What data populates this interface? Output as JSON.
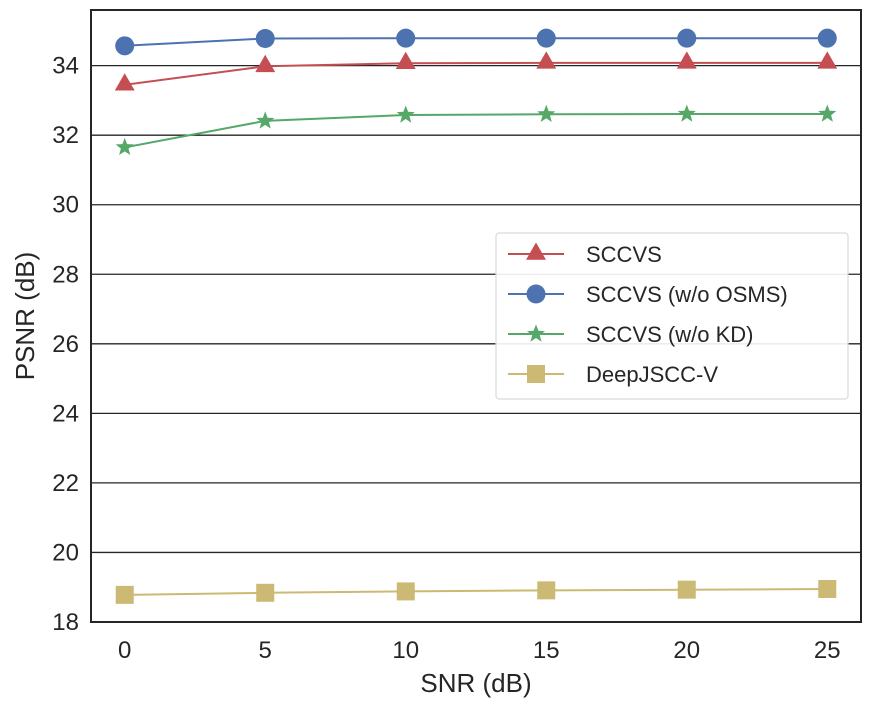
{
  "chart_data": {
    "type": "line",
    "title": "",
    "xlabel": "SNR (dB)",
    "ylabel": "PSNR (dB)",
    "x": [
      0,
      5,
      10,
      15,
      20,
      25
    ],
    "xticks": [
      "0",
      "5",
      "10",
      "15",
      "20",
      "25"
    ],
    "yticks": [
      "18",
      "20",
      "22",
      "24",
      "26",
      "28",
      "30",
      "32",
      "34"
    ],
    "xlim": [
      -1.2,
      26.2
    ],
    "ylim": [
      18,
      35.6
    ],
    "grid": "horizontal",
    "legend_position": "center-right",
    "series": [
      {
        "name": "SCCVS",
        "values": [
          33.45,
          33.98,
          34.07,
          34.08,
          34.08,
          34.08
        ],
        "color": "#c44e52",
        "marker": "triangle"
      },
      {
        "name": "SCCVS (w/o OSMS)",
        "values": [
          34.57,
          34.78,
          34.79,
          34.79,
          34.79,
          34.79
        ],
        "color": "#4c72b0",
        "marker": "circle"
      },
      {
        "name": "SCCVS (w/o KD)",
        "values": [
          31.65,
          32.41,
          32.58,
          32.6,
          32.61,
          32.61
        ],
        "color": "#55a868",
        "marker": "star"
      },
      {
        "name": "DeepJSCC-V",
        "values": [
          18.78,
          18.84,
          18.88,
          18.91,
          18.93,
          18.95
        ],
        "color": "#ccb974",
        "marker": "square"
      }
    ]
  }
}
